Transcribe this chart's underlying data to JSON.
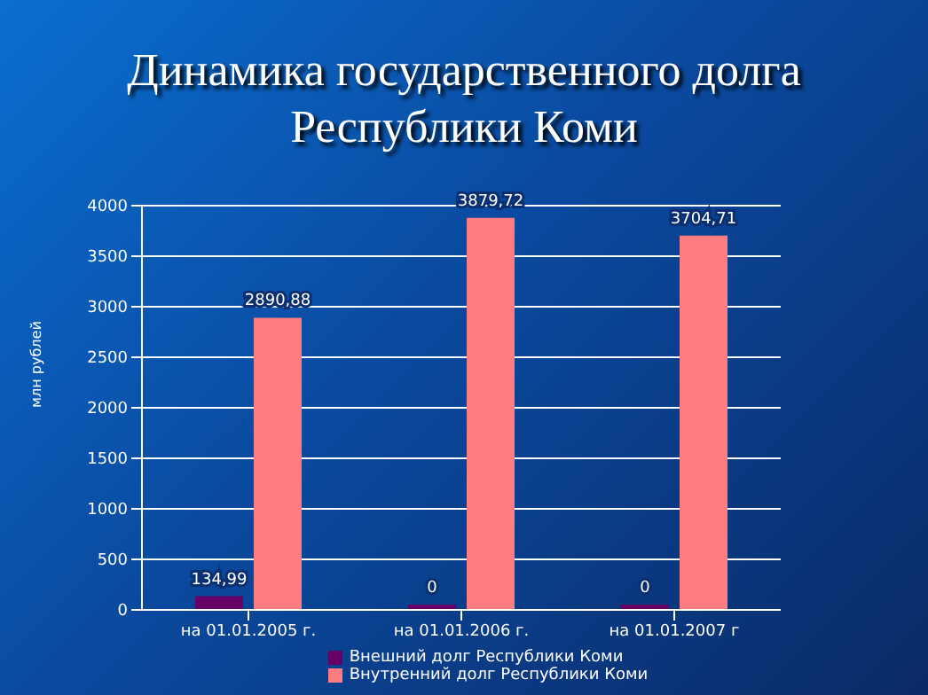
{
  "chart_data": {
    "type": "bar",
    "title": "Динамика государственного долга Республики Коми",
    "ylabel": "млн рублей",
    "categories": [
      "на 01.01.2005 г.",
      "на 01.01.2006 г.",
      "на 01.01.2007 г"
    ],
    "series": [
      {
        "name": "Внешний долг Республики Коми",
        "color": "#660066",
        "values": [
          134.99,
          0,
          0
        ],
        "value_labels": [
          "134,99",
          "0",
          "0"
        ]
      },
      {
        "name": "Внутренний долг Республики Коми",
        "color": "#ff7c80",
        "values": [
          2890.88,
          3879.72,
          3704.71
        ],
        "value_labels": [
          "2890,88",
          "3879,72",
          "3704,71"
        ]
      }
    ],
    "ylim": [
      0,
      4000
    ],
    "yticks": [
      0,
      500,
      1000,
      1500,
      2000,
      2500,
      3000,
      3500,
      4000
    ],
    "grid": "y",
    "legend": "bottom"
  }
}
